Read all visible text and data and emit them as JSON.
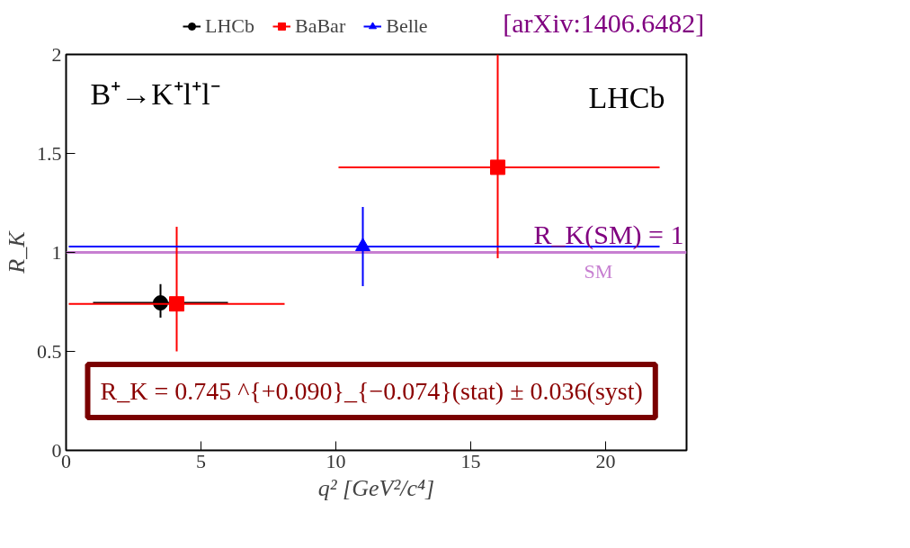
{
  "chart_data": {
    "type": "scatter",
    "xlabel": "q² [GeV²/c⁴]",
    "ylabel": "R_K",
    "xlim": [
      0,
      23
    ],
    "xticks": [
      0,
      5,
      10,
      15,
      20
    ],
    "ylim": [
      0,
      2
    ],
    "yticks": [
      0,
      0.5,
      1,
      1.5,
      2
    ],
    "grid": false,
    "legend": "top",
    "series": [
      {
        "name": "LHCb",
        "color": "#000000",
        "marker": "circle",
        "x": [
          3.5
        ],
        "values": [
          0.745
        ],
        "errors": [
          [
            0.67,
            0.84
          ]
        ],
        "xerrors": [
          [
            1,
            6
          ]
        ]
      },
      {
        "name": "BaBar",
        "color": "#ff0000",
        "marker": "square",
        "x": [
          4.1,
          16
        ],
        "values": [
          0.74,
          1.43
        ],
        "errors": [
          [
            0.5,
            1.13
          ],
          [
            0.97,
            2.0
          ]
        ],
        "xerrors": [
          [
            0.1,
            8.1
          ],
          [
            10.1,
            22
          ]
        ]
      },
      {
        "name": "Belle",
        "color": "#0000ff",
        "marker": "triangle",
        "x": [
          11
        ],
        "values": [
          1.03
        ],
        "errors": [
          [
            0.83,
            1.23
          ]
        ],
        "xerrors": [
          [
            0.1,
            22
          ]
        ]
      }
    ],
    "ref_lines": [
      {
        "axis": "y",
        "value": 1,
        "label": "SM",
        "color": "#c77fd1"
      }
    ],
    "annotations": [
      "B⁺→K⁺l⁺l⁻",
      "LHCb",
      "R_K(SM) = 1",
      "R_K = 0.745 ^{+0.090}_{−0.074}(stat) ± 0.036(syst)",
      "[arXiv:1406.6482]"
    ]
  }
}
